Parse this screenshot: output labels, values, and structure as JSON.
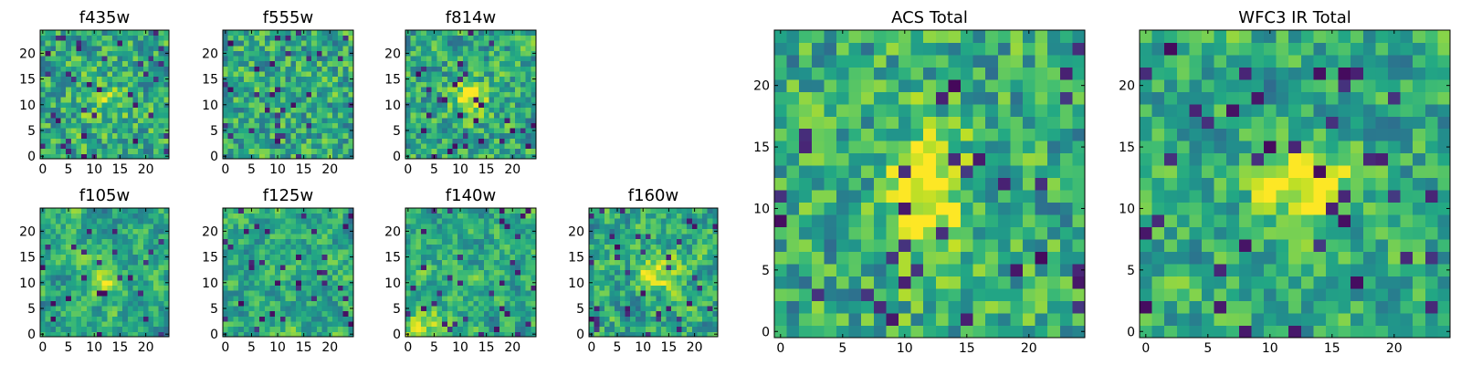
{
  "chart_data": {
    "type": "heatmap",
    "colormap": "viridis",
    "grid": false,
    "panels": [
      {
        "id": "f435w",
        "title": "f435w",
        "size": 25,
        "xlim": [
          0,
          24
        ],
        "ylim": [
          0,
          24
        ],
        "xticks": [
          0,
          5,
          10,
          15,
          20
        ],
        "yticks": [
          0,
          5,
          10,
          15,
          20
        ],
        "xticklabels": [
          "0",
          "5",
          "10",
          "15",
          "20"
        ],
        "yticklabels": [
          "0",
          "5",
          "10",
          "15",
          "20"
        ],
        "pattern": "uniform noise, slightly brighter core, dark pixels near (8,7)"
      },
      {
        "id": "f555w",
        "title": "f555w",
        "size": 25,
        "xlim": [
          0,
          24
        ],
        "ylim": [
          0,
          24
        ],
        "xticks": [
          0,
          5,
          10,
          15,
          20
        ],
        "yticks": [
          0,
          5,
          10,
          15,
          20
        ],
        "xticklabels": [
          "0",
          "5",
          "10",
          "15",
          "20"
        ],
        "yticklabels": [
          "0",
          "5",
          "10",
          "15",
          "20"
        ],
        "pattern": "uniform noise"
      },
      {
        "id": "f814w",
        "title": "f814w",
        "size": 25,
        "xlim": [
          0,
          24
        ],
        "ylim": [
          0,
          24
        ],
        "xticks": [
          0,
          5,
          10,
          15,
          20
        ],
        "yticks": [
          0,
          5,
          10,
          15,
          20
        ],
        "xticklabels": [
          "0",
          "5",
          "10",
          "15",
          "20"
        ],
        "yticklabels": [
          "0",
          "5",
          "10",
          "15",
          "20"
        ],
        "pattern": "noise with bright source near (12,11)"
      },
      {
        "id": "f105w",
        "title": "f105w",
        "size": 25,
        "xlim": [
          0,
          24
        ],
        "ylim": [
          0,
          24
        ],
        "xticks": [
          0,
          5,
          10,
          15,
          20
        ],
        "yticks": [
          0,
          5,
          10,
          15,
          20
        ],
        "xticklabels": [
          "0",
          "5",
          "10",
          "15",
          "20"
        ],
        "yticklabels": [
          "0",
          "5",
          "10",
          "15",
          "20"
        ],
        "pattern": "blotchy noise with bright source near (12,11)"
      },
      {
        "id": "f125w",
        "title": "f125w",
        "size": 25,
        "xlim": [
          0,
          24
        ],
        "ylim": [
          0,
          24
        ],
        "xticks": [
          0,
          5,
          10,
          15,
          20
        ],
        "yticks": [
          0,
          5,
          10,
          15,
          20
        ],
        "xticklabels": [
          "0",
          "5",
          "10",
          "15",
          "20"
        ],
        "yticklabels": [
          "0",
          "5",
          "10",
          "15",
          "20"
        ],
        "pattern": "blotchy noise"
      },
      {
        "id": "f140w",
        "title": "f140w",
        "size": 25,
        "xlim": [
          0,
          24
        ],
        "ylim": [
          0,
          24
        ],
        "xticks": [
          0,
          5,
          10,
          15,
          20
        ],
        "yticks": [
          0,
          5,
          10,
          15,
          20
        ],
        "xticklabels": [
          "0",
          "5",
          "10",
          "15",
          "20"
        ],
        "yticklabels": [
          "0",
          "5",
          "10",
          "15",
          "20"
        ],
        "pattern": "blotchy noise, bright lower-left"
      },
      {
        "id": "f160w",
        "title": "f160w",
        "size": 25,
        "xlim": [
          0,
          24
        ],
        "ylim": [
          0,
          24
        ],
        "xticks": [
          0,
          5,
          10,
          15,
          20
        ],
        "yticks": [
          0,
          5,
          10,
          15,
          20
        ],
        "xticklabels": [
          "0",
          "5",
          "10",
          "15",
          "20"
        ],
        "yticklabels": [
          "0",
          "5",
          "10",
          "15",
          "20"
        ],
        "pattern": "noise with bright source near (13,12)"
      },
      {
        "id": "acs-total",
        "title": "ACS Total",
        "size": 25,
        "xlim": [
          0,
          24
        ],
        "ylim": [
          0,
          24
        ],
        "xticks": [
          0,
          5,
          10,
          15,
          20
        ],
        "yticks": [
          0,
          5,
          10,
          15,
          20
        ],
        "xticklabels": [
          "0",
          "5",
          "10",
          "15",
          "20"
        ],
        "yticklabels": [
          "0",
          "5",
          "10",
          "15",
          "20"
        ],
        "pattern": "noise with elongated bright source centred near (12,11)"
      },
      {
        "id": "wfc3-ir-total",
        "title": "WFC3 IR Total",
        "size": 25,
        "xlim": [
          0,
          24
        ],
        "ylim": [
          0,
          24
        ],
        "xticks": [
          0,
          5,
          10,
          15,
          20
        ],
        "yticks": [
          0,
          5,
          10,
          15,
          20
        ],
        "xticklabels": [
          "0",
          "5",
          "10",
          "15",
          "20"
        ],
        "yticklabels": [
          "0",
          "5",
          "10",
          "15",
          "20"
        ],
        "pattern": "smooth noise with bright source near (13,12), dark pixels top-left"
      }
    ]
  }
}
